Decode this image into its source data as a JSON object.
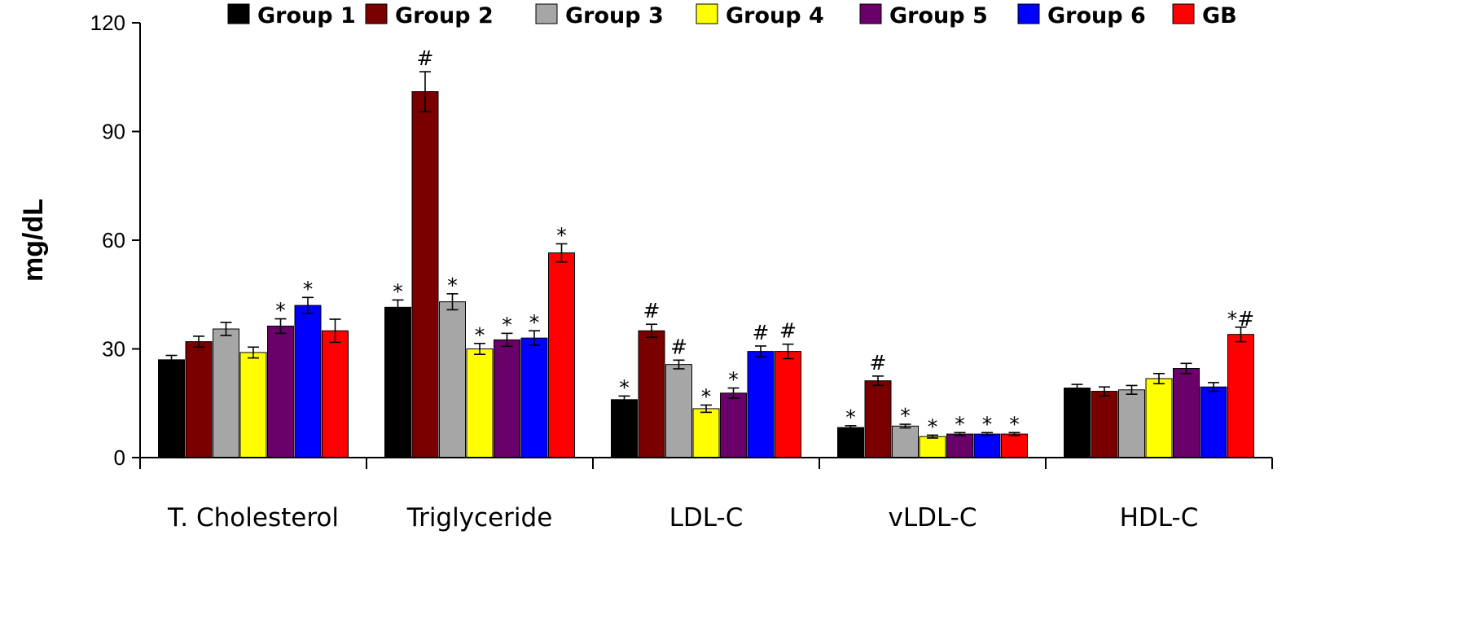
{
  "chart_data": {
    "type": "bar",
    "title": "",
    "xlabel": "",
    "ylabel": "mg/dL",
    "ylim": [
      0,
      120
    ],
    "yticks": [
      0,
      30,
      60,
      90,
      120
    ],
    "legend_position": "top",
    "categories": [
      "T. Cholesterol",
      "Triglyceride",
      "LDL-C",
      "vLDL-C",
      "HDL-C"
    ],
    "series": [
      {
        "name": "Group 1",
        "color": "#000000",
        "values": [
          27,
          41.5,
          16,
          8.3,
          19.2
        ],
        "errors": [
          1.2,
          2.0,
          1.0,
          0.5,
          1.0
        ],
        "marks": [
          "",
          "*",
          "*",
          "*",
          ""
        ]
      },
      {
        "name": "Group 2",
        "color": "#7a0000",
        "values": [
          32,
          101,
          35,
          21.2,
          18.3
        ],
        "errors": [
          1.5,
          5.5,
          1.8,
          1.3,
          1.2
        ],
        "marks": [
          "",
          "#",
          "#",
          "#",
          ""
        ]
      },
      {
        "name": "Group 3",
        "color": "#a6a6a6",
        "values": [
          35.5,
          43,
          25.7,
          8.7,
          18.7
        ],
        "errors": [
          1.8,
          2.2,
          1.2,
          0.5,
          1.2
        ],
        "marks": [
          "",
          "*",
          "#",
          "*",
          ""
        ]
      },
      {
        "name": "Group 4",
        "color": "#ffff00",
        "values": [
          29,
          30,
          13.5,
          5.8,
          21.8
        ],
        "errors": [
          1.5,
          1.5,
          1.0,
          0.4,
          1.4
        ],
        "marks": [
          "",
          "*",
          "*",
          "*",
          ""
        ]
      },
      {
        "name": "Group 5",
        "color": "#6a006a",
        "values": [
          36.3,
          32.5,
          17.8,
          6.5,
          24.6
        ],
        "errors": [
          2.0,
          1.8,
          1.4,
          0.4,
          1.4
        ],
        "marks": [
          "*",
          "*",
          "*",
          "*",
          ""
        ]
      },
      {
        "name": "Group 6",
        "color": "#0000ff",
        "values": [
          42,
          33,
          29.3,
          6.5,
          19.5
        ],
        "errors": [
          2.2,
          2.0,
          1.5,
          0.4,
          1.2
        ],
        "marks": [
          "*",
          "*",
          "#",
          "*",
          ""
        ]
      },
      {
        "name": "GB",
        "color": "#ff0000",
        "values": [
          35,
          56.5,
          29.3,
          6.5,
          34
        ],
        "errors": [
          3.2,
          2.5,
          2.0,
          0.4,
          2.0
        ],
        "marks": [
          "",
          "*",
          "#",
          "*",
          "*#"
        ]
      }
    ]
  }
}
